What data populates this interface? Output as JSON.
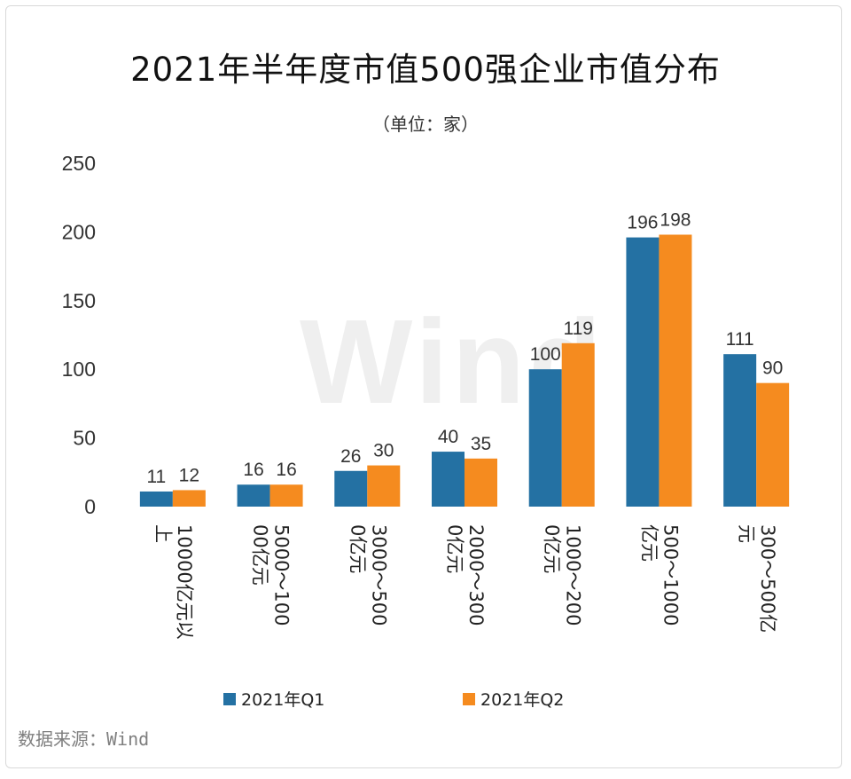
{
  "chart_data": {
    "type": "bar",
    "title": "2021年半年度市值500强企业市值分布",
    "subtitle": "（单位：家）",
    "categories": [
      "10000亿元以上",
      "5000～10000亿元",
      "3000～5000亿元",
      "2000～3000亿元",
      "1000～2000亿元",
      "500～1000亿元",
      "300～500亿元"
    ],
    "series": [
      {
        "name": "2021年Q1",
        "color": "#2471a3",
        "values": [
          11,
          16,
          26,
          40,
          100,
          196,
          111
        ]
      },
      {
        "name": "2021年Q2",
        "color": "#f58b1f",
        "values": [
          12,
          16,
          30,
          35,
          119,
          198,
          90
        ]
      }
    ],
    "ylim": [
      0,
      250
    ],
    "yticks": [
      0,
      50,
      100,
      150,
      200,
      250
    ],
    "grid": false,
    "legend_position": "bottom",
    "source": "数据来源：Wind",
    "watermark": "Wind"
  }
}
